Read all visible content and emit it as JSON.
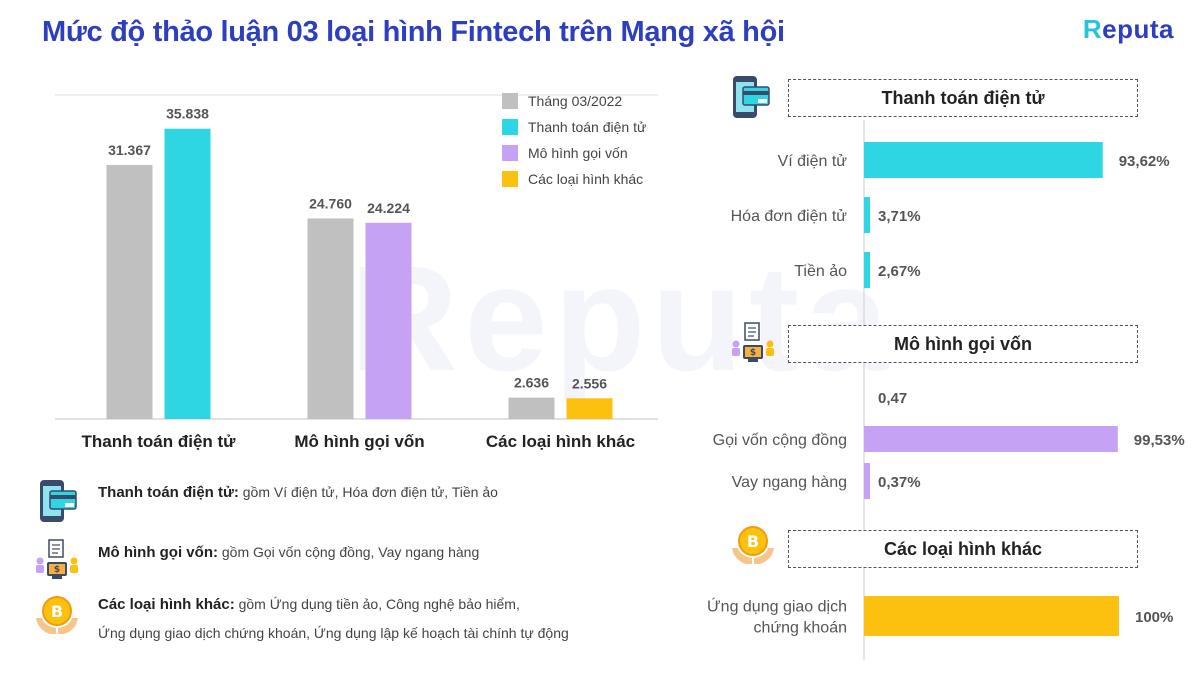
{
  "header": {
    "title": "Mức độ thảo luận 03 loại hình Fintech trên Mạng xã hội",
    "logo_main": "eputa",
    "logo_accent": "R"
  },
  "watermark": "Reputa",
  "colors": {
    "title": "#2d3fbf",
    "gray": "#c0c0c0",
    "cyan": "#2ed5e3",
    "purple": "#c6a2f5",
    "yellow": "#fcc10f"
  },
  "chart_data": [
    {
      "type": "bar",
      "categories": [
        "Thanh toán điện tử",
        "Mô hình gọi vốn",
        "Các loại hình khác"
      ],
      "series": [
        {
          "name": "Tháng 03/2022",
          "values": [
            31367,
            24760,
            2636
          ],
          "labels": [
            "31.367",
            "24.760",
            "2.636"
          ],
          "color": "#c0c0c0"
        },
        {
          "name": "Thanh toán điện tử",
          "values": [
            35838,
            null,
            null
          ],
          "labels": [
            "35.838",
            "",
            ""
          ],
          "color": "#2ed5e3"
        },
        {
          "name": "Mô hình gọi vốn",
          "values": [
            null,
            24224,
            null
          ],
          "labels": [
            "",
            "24.224",
            ""
          ],
          "color": "#c6a2f5"
        },
        {
          "name": "Các loại hình khác",
          "values": [
            null,
            null,
            2556
          ],
          "labels": [
            "",
            "",
            "2.556"
          ],
          "color": "#fcc10f"
        }
      ],
      "ylim": [
        0,
        40000
      ],
      "grid": true,
      "legend": "top-right"
    },
    {
      "type": "bar",
      "orientation": "horizontal",
      "title": "Thanh toán điện tử",
      "categories": [
        "Ví điện tử",
        "Hóa đơn điện tử",
        "Tiền ảo"
      ],
      "values": [
        93.62,
        3.71,
        2.67
      ],
      "labels": [
        "93,62%",
        "3,71%",
        "2,67%"
      ],
      "color": "#2ed5e3",
      "xlim": [
        0,
        100
      ]
    },
    {
      "type": "bar",
      "orientation": "horizontal",
      "title": "Mô hình gọi vốn",
      "categories": [
        "",
        "Gọi vốn cộng đồng",
        "Vay ngang hàng"
      ],
      "values": [
        0.47,
        99.53,
        0.37
      ],
      "labels": [
        "0,47",
        "99,53%",
        "0,37%"
      ],
      "color": "#c6a2f5",
      "xlim": [
        0,
        100
      ]
    },
    {
      "type": "bar",
      "orientation": "horizontal",
      "title": "Các loại hình khác",
      "categories": [
        "Ứng dụng giao dịch chứng khoán"
      ],
      "category_lines": [
        [
          "Ứng dụng giao dịch",
          "chứng khoán"
        ]
      ],
      "values": [
        100
      ],
      "labels": [
        "100%"
      ],
      "color": "#fcc10f",
      "xlim": [
        0,
        100
      ]
    }
  ],
  "notes": [
    {
      "icon": "payment-phone-icon",
      "title": "Thanh toán điện tử:",
      "lines": [
        " gồm Ví điện tử, Hóa đơn điện tử, Tiền ảo"
      ]
    },
    {
      "icon": "crowdfunding-icon",
      "title": "Mô hình gọi vốn:",
      "lines": [
        " gồm Gọi vốn cộng đồng, Vay ngang hàng"
      ]
    },
    {
      "icon": "bitcoin-hands-icon",
      "title": "Các loại hình khác:",
      "lines": [
        " gồm Ứng dụng tiền ảo, Công nghệ bảo hiểm,",
        "Ứng dụng giao dịch chứng khoán, Ứng dụng lập kế hoạch tài chính tự động"
      ]
    }
  ]
}
